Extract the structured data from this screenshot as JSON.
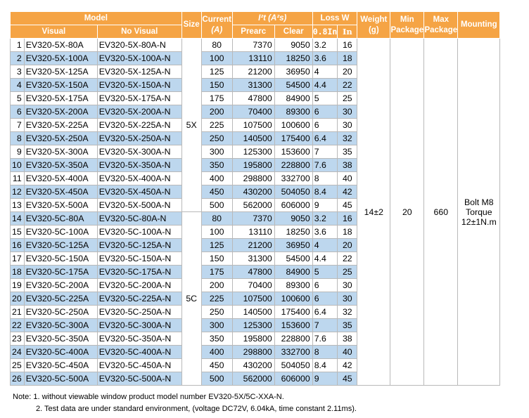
{
  "headers": {
    "model": "Model",
    "visual": "Visual",
    "no_visual": "No Visual",
    "size": "Size",
    "current": "Current",
    "current_unit": "(A)",
    "i2t": "I²t (A²s)",
    "prearc": "Prearc",
    "clear": "Clear",
    "loss": "Loss W",
    "loss_a": "0.8In",
    "loss_b": "In",
    "weight": "Weight",
    "weight_unit": "(g)",
    "min_package": "Min Package",
    "max_package": "Max Package",
    "mounting": "Mounting"
  },
  "merged": {
    "size_5x": "5X",
    "size_5c": "5C",
    "weight": "14±2",
    "min_package": "20",
    "max_package": "660",
    "mounting_line1": "Bolt M8",
    "mounting_line2": "Torque",
    "mounting_line3": "12±1N.m"
  },
  "rows": [
    [
      "1",
      "EV320-5X-80A",
      "EV320-5X-80A-N",
      "80",
      "7370",
      "9050",
      "3.2",
      "16"
    ],
    [
      "2",
      "EV320-5X-100A",
      "EV320-5X-100A-N",
      "100",
      "13110",
      "18250",
      "3.6",
      "18"
    ],
    [
      "3",
      "EV320-5X-125A",
      "EV320-5X-125A-N",
      "125",
      "21200",
      "36950",
      "4",
      "20"
    ],
    [
      "4",
      "EV320-5X-150A",
      "EV320-5X-150A-N",
      "150",
      "31300",
      "54500",
      "4.4",
      "22"
    ],
    [
      "5",
      "EV320-5X-175A",
      "EV320-5X-175A-N",
      "175",
      "47800",
      "84900",
      "5",
      "25"
    ],
    [
      "6",
      "EV320-5X-200A",
      "EV320-5X-200A-N",
      "200",
      "70400",
      "89300",
      "6",
      "30"
    ],
    [
      "7",
      "EV320-5X-225A",
      "EV320-5X-225A-N",
      "225",
      "107500",
      "100600",
      "6",
      "30"
    ],
    [
      "8",
      "EV320-5X-250A",
      "EV320-5X-250A-N",
      "250",
      "140500",
      "175400",
      "6.4",
      "32"
    ],
    [
      "9",
      "EV320-5X-300A",
      "EV320-5X-300A-N",
      "300",
      "125300",
      "153600",
      "7",
      "35"
    ],
    [
      "10",
      "EV320-5X-350A",
      "EV320-5X-350A-N",
      "350",
      "195800",
      "228800",
      "7.6",
      "38"
    ],
    [
      "11",
      "EV320-5X-400A",
      "EV320-5X-400A-N",
      "400",
      "298800",
      "332700",
      "8",
      "40"
    ],
    [
      "12",
      "EV320-5X-450A",
      "EV320-5X-450A-N",
      "450",
      "430200",
      "504050",
      "8.4",
      "42"
    ],
    [
      "13",
      "EV320-5X-500A",
      "EV320-5X-500A-N",
      "500",
      "562000",
      "606000",
      "9",
      "45"
    ],
    [
      "14",
      "EV320-5C-80A",
      "EV320-5C-80A-N",
      "80",
      "7370",
      "9050",
      "3.2",
      "16"
    ],
    [
      "15",
      "EV320-5C-100A",
      "EV320-5C-100A-N",
      "100",
      "13110",
      "18250",
      "3.6",
      "18"
    ],
    [
      "16",
      "EV320-5C-125A",
      "EV320-5C-125A-N",
      "125",
      "21200",
      "36950",
      "4",
      "20"
    ],
    [
      "17",
      "EV320-5C-150A",
      "EV320-5C-150A-N",
      "150",
      "31300",
      "54500",
      "4.4",
      "22"
    ],
    [
      "18",
      "EV320-5C-175A",
      "EV320-5C-175A-N",
      "175",
      "47800",
      "84900",
      "5",
      "25"
    ],
    [
      "19",
      "EV320-5C-200A",
      "EV320-5C-200A-N",
      "200",
      "70400",
      "89300",
      "6",
      "30"
    ],
    [
      "20",
      "EV320-5C-225A",
      "EV320-5C-225A-N",
      "225",
      "107500",
      "100600",
      "6",
      "30"
    ],
    [
      "21",
      "EV320-5C-250A",
      "EV320-5C-250A-N",
      "250",
      "140500",
      "175400",
      "6.4",
      "32"
    ],
    [
      "22",
      "EV320-5C-300A",
      "EV320-5C-300A-N",
      "300",
      "125300",
      "153600",
      "7",
      "35"
    ],
    [
      "23",
      "EV320-5C-350A",
      "EV320-5C-350A-N",
      "350",
      "195800",
      "228800",
      "7.6",
      "38"
    ],
    [
      "24",
      "EV320-5C-400A",
      "EV320-5C-400A-N",
      "400",
      "298800",
      "332700",
      "8",
      "40"
    ],
    [
      "25",
      "EV320-5C-450A",
      "EV320-5C-450A-N",
      "450",
      "430200",
      "504050",
      "8.4",
      "42"
    ],
    [
      "26",
      "EV320-5C-500A",
      "EV320-5C-500A-N",
      "500",
      "562000",
      "606000",
      "9",
      "45"
    ]
  ],
  "notes": {
    "note1": "Note: 1. without viewable window product model number EV320-5X/5C-XXA-N.",
    "note2": "2. Test data are under standard environment, (voltage DC72V, 6.04kA, time constant 2.11ms)."
  },
  "colors": {
    "header_bg": "#f5a445",
    "stripe_bg": "#bdd7ee",
    "grid": "#b9b9b9"
  }
}
